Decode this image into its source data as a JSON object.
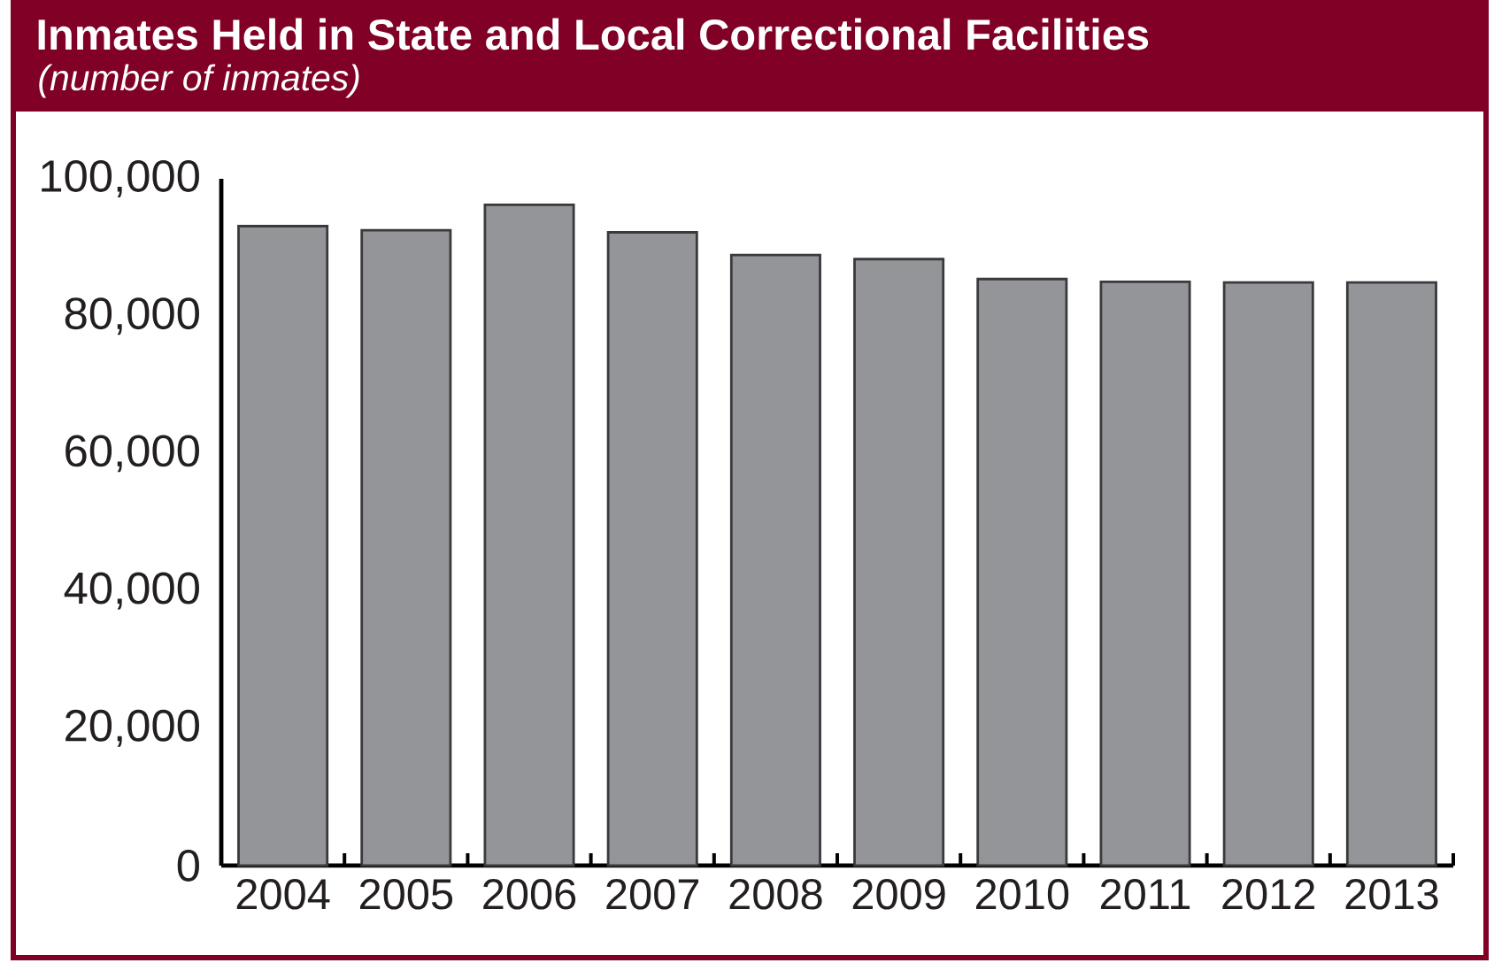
{
  "chart_data": {
    "type": "bar",
    "title": "Inmates Held in State and Local Correctional Facilities",
    "subtitle": "(number of inmates)",
    "categories": [
      "2004",
      "2005",
      "2006",
      "2007",
      "2008",
      "2009",
      "2010",
      "2011",
      "2012",
      "2013"
    ],
    "values": [
      93100,
      92500,
      96200,
      92200,
      88900,
      88300,
      85400,
      85000,
      84900,
      84900
    ],
    "color": "#939598",
    "ylim": [
      0,
      100000
    ],
    "yticks": [
      0,
      {
        "value": 20000,
        "label": "20,000"
      },
      {
        "value": 40000,
        "label": "40,000"
      },
      {
        "value": 60000,
        "label": "60,000"
      },
      {
        "value": 80000,
        "label": "80,000"
      },
      {
        "value": 100000,
        "label": "100,000"
      }
    ]
  }
}
